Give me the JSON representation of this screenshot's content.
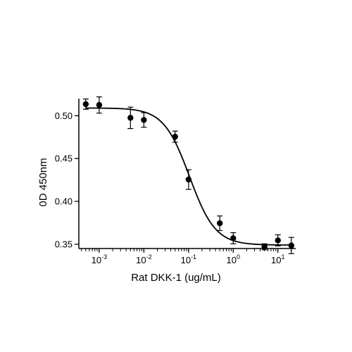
{
  "chart_data": {
    "type": "scatter",
    "xlabel": "Rat DKK-1 (ug/mL)",
    "ylabel": "0D 450nm",
    "x_scale": "log",
    "xlim": [
      0.00035,
      25
    ],
    "ylim": [
      0.345,
      0.52
    ],
    "x_ticks": [
      {
        "value": 0.001,
        "base": "10",
        "exp": "-3"
      },
      {
        "value": 0.01,
        "base": "10",
        "exp": "-2"
      },
      {
        "value": 0.1,
        "base": "10",
        "exp": "-1"
      },
      {
        "value": 1,
        "base": "10",
        "exp": "0"
      },
      {
        "value": 10,
        "base": "10",
        "exp": "1"
      }
    ],
    "y_ticks": [
      {
        "value": 0.35,
        "label": "0.35"
      },
      {
        "value": 0.4,
        "label": "0.40"
      },
      {
        "value": 0.45,
        "label": "0.45"
      },
      {
        "value": 0.5,
        "label": "0.50"
      }
    ],
    "grid": false,
    "series": [
      {
        "color": "#000000",
        "points": [
          {
            "x": 0.0005,
            "y": 0.5135,
            "err": 0.006
          },
          {
            "x": 0.001,
            "y": 0.5125,
            "err": 0.0095
          },
          {
            "x": 0.005,
            "y": 0.4975,
            "err": 0.0125
          },
          {
            "x": 0.01,
            "y": 0.495,
            "err": 0.0085
          },
          {
            "x": 0.05,
            "y": 0.4755,
            "err": 0.0065
          },
          {
            "x": 0.1,
            "y": 0.4255,
            "err": 0.0115
          },
          {
            "x": 0.5,
            "y": 0.3745,
            "err": 0.0085
          },
          {
            "x": 1,
            "y": 0.357,
            "err": 0.0065
          },
          {
            "x": 5,
            "y": 0.347,
            "err": 0.0035
          },
          {
            "x": 10,
            "y": 0.3545,
            "err": 0.0065
          },
          {
            "x": 20,
            "y": 0.3485,
            "err": 0.0095
          }
        ],
        "fit": {
          "model": "4PL",
          "top": 0.509,
          "bottom": 0.349,
          "ec50": 0.105,
          "hill": 1.5
        }
      }
    ]
  }
}
